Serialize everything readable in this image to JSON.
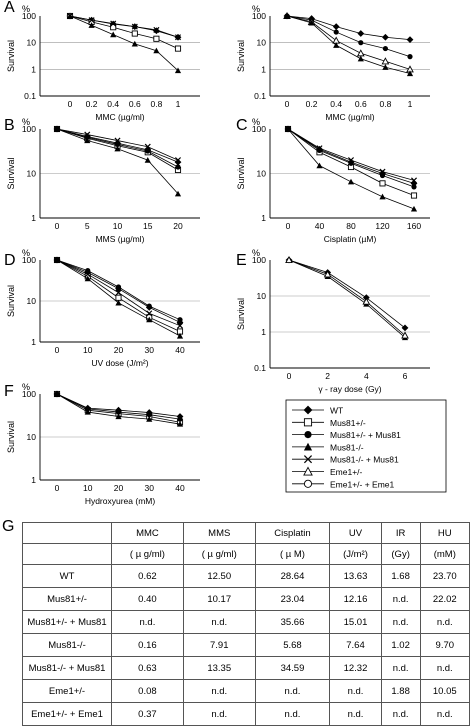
{
  "panels": [
    {
      "letter": "A",
      "unit": "%",
      "ylabel": "Survival",
      "xlabel": "MMC (µg/ml)",
      "x_ticks": [
        "0",
        "0.2",
        "0.4",
        "0.6",
        "0.8",
        "1"
      ],
      "y_ticks": [
        "100",
        "10",
        "1",
        "0.1"
      ],
      "chart_data": {
        "type": "line",
        "x": [
          0,
          0.2,
          0.4,
          0.6,
          0.8,
          1
        ],
        "ylim": [
          0.1,
          100
        ],
        "yscale": "log",
        "series": [
          {
            "marker": "diamond",
            "values": [
              100,
              70,
              50,
              40,
              28,
              16
            ]
          },
          {
            "marker": "square",
            "values": [
              100,
              60,
              38,
              22,
              14,
              6
            ]
          },
          {
            "marker": "cross",
            "values": [
              100,
              70,
              52,
              40,
              30,
              16
            ]
          },
          {
            "marker": "triangle",
            "values": [
              100,
              45,
              20,
              9,
              5,
              0.9
            ]
          }
        ]
      }
    },
    {
      "letter": "",
      "unit": "%",
      "ylabel": "Survival",
      "xlabel": "MMC (µg/ml)",
      "x_ticks": [
        "0",
        "0.2",
        "0.4",
        "0.6",
        "0.8",
        "1"
      ],
      "y_ticks": [
        "100",
        "10",
        "1",
        "0.1"
      ],
      "chart_data": {
        "type": "line",
        "x": [
          0,
          0.2,
          0.4,
          0.6,
          0.8,
          1
        ],
        "ylim": [
          0.1,
          100
        ],
        "yscale": "log",
        "series": [
          {
            "marker": "diamond",
            "values": [
              100,
              80,
              40,
              22,
              16,
              13
            ]
          },
          {
            "marker": "circle",
            "values": [
              100,
              70,
              25,
              10,
              6,
              3
            ]
          },
          {
            "marker": "triangle-open",
            "values": [
              100,
              60,
              12,
              4,
              2,
              1
            ]
          },
          {
            "marker": "triangle",
            "values": [
              100,
              55,
              8,
              2.5,
              1.2,
              0.7
            ]
          }
        ]
      }
    },
    {
      "letter": "B",
      "unit": "%",
      "ylabel": "Survival",
      "xlabel": "MMS (µg/ml)",
      "x_ticks": [
        "0",
        "5",
        "10",
        "15",
        "20"
      ],
      "y_ticks": [
        "100",
        "10",
        "1"
      ],
      "chart_data": {
        "type": "line",
        "x": [
          0,
          5,
          10,
          15,
          20
        ],
        "ylim": [
          1,
          100
        ],
        "yscale": "log",
        "series": [
          {
            "marker": "diamond",
            "values": [
              100,
              68,
              48,
              34,
              18
            ]
          },
          {
            "marker": "square",
            "values": [
              100,
              62,
              42,
              30,
              12
            ]
          },
          {
            "marker": "cross",
            "values": [
              100,
              75,
              55,
              40,
              20
            ]
          },
          {
            "marker": "circle",
            "values": [
              100,
              65,
              45,
              32,
              14
            ]
          },
          {
            "marker": "triangle",
            "values": [
              100,
              55,
              36,
              20,
              3.5
            ]
          }
        ]
      }
    },
    {
      "letter": "C",
      "unit": "%",
      "ylabel": "Survival",
      "xlabel": "Cisplatin (µM)",
      "x_ticks": [
        "0",
        "40",
        "80",
        "120",
        "160"
      ],
      "y_ticks": [
        "100",
        "10",
        "1"
      ],
      "chart_data": {
        "type": "line",
        "x": [
          0,
          40,
          80,
          120,
          160
        ],
        "ylim": [
          1,
          100
        ],
        "yscale": "log",
        "series": [
          {
            "marker": "diamond",
            "values": [
              100,
              35,
              18,
              10,
              6
            ]
          },
          {
            "marker": "square",
            "values": [
              100,
              30,
              14,
              6,
              3.2
            ]
          },
          {
            "marker": "circle",
            "values": [
              100,
              33,
              17,
              9,
              5
            ]
          },
          {
            "marker": "cross",
            "values": [
              100,
              37,
              20,
              11,
              7
            ]
          },
          {
            "marker": "triangle",
            "values": [
              100,
              15,
              6.5,
              3,
              1.6
            ]
          }
        ]
      }
    },
    {
      "letter": "D",
      "unit": "%",
      "ylabel": "Survival",
      "xlabel": "UV dose (J/m²)",
      "x_ticks": [
        "0",
        "10",
        "20",
        "30",
        "40"
      ],
      "y_ticks": [
        "100",
        "10",
        "1"
      ],
      "chart_data": {
        "type": "line",
        "x": [
          0,
          10,
          20,
          30,
          40
        ],
        "ylim": [
          1,
          100
        ],
        "yscale": "log",
        "series": [
          {
            "marker": "diamond",
            "values": [
              100,
              50,
              20,
              7,
              3
            ]
          },
          {
            "marker": "square",
            "values": [
              100,
              40,
              12,
              4,
              1.8
            ]
          },
          {
            "marker": "circle",
            "values": [
              100,
              55,
              22,
              7.5,
              3.5
            ]
          },
          {
            "marker": "cross",
            "values": [
              100,
              45,
              16,
              5,
              2.5
            ]
          },
          {
            "marker": "triangle",
            "values": [
              100,
              35,
              9,
              3.5,
              1.4
            ]
          }
        ]
      }
    },
    {
      "letter": "E",
      "unit": "%",
      "ylabel": "Survival",
      "xlabel": "γ - ray dose (Gy)",
      "x_ticks": [
        "0",
        "2",
        "4",
        "6"
      ],
      "y_ticks": [
        "100",
        "10",
        "1",
        "0.1"
      ],
      "chart_data": {
        "type": "line",
        "x": [
          0,
          2,
          4,
          6
        ],
        "ylim": [
          0.1,
          100
        ],
        "yscale": "log",
        "series": [
          {
            "marker": "diamond",
            "values": [
              100,
              45,
              9,
              1.3
            ]
          },
          {
            "marker": "triangle",
            "values": [
              100,
              35,
              6,
              0.7
            ]
          },
          {
            "marker": "triangle-open",
            "values": [
              100,
              40,
              7,
              0.8
            ]
          }
        ]
      }
    },
    {
      "letter": "F",
      "unit": "%",
      "ylabel": "Survival",
      "xlabel": "Hydroxyurea (mM)",
      "x_ticks": [
        "0",
        "10",
        "20",
        "30",
        "40"
      ],
      "y_ticks": [
        "100",
        "10",
        "1"
      ],
      "chart_data": {
        "type": "line",
        "x": [
          0,
          10,
          20,
          30,
          40
        ],
        "ylim": [
          1,
          100
        ],
        "yscale": "log",
        "series": [
          {
            "marker": "diamond",
            "values": [
              100,
              47,
              42,
              37,
              30
            ]
          },
          {
            "marker": "square",
            "values": [
              100,
              42,
              35,
              30,
              22
            ]
          },
          {
            "marker": "circle",
            "values": [
              100,
              45,
              38,
              33,
              26
            ]
          },
          {
            "marker": "triangle",
            "values": [
              100,
              38,
              30,
              26,
              20
            ]
          }
        ]
      }
    }
  ],
  "legend": [
    {
      "marker": "diamond",
      "label": "WT"
    },
    {
      "marker": "square",
      "label": "Mus81+/-"
    },
    {
      "marker": "circle",
      "label": "Mus81+/- + Mus81"
    },
    {
      "marker": "triangle",
      "label": "Mus81-/-"
    },
    {
      "marker": "cross",
      "label": "Mus81-/- + Mus81"
    },
    {
      "marker": "triangle-open",
      "label": "Eme1+/-"
    },
    {
      "marker": "circle-open",
      "label": "Eme1+/- + Eme1"
    }
  ],
  "table": {
    "letter": "G",
    "columns": [
      "MMC",
      "MMS",
      "Cisplatin",
      "UV",
      "IR",
      "HU"
    ],
    "units": [
      "( µ g/ml)",
      "( µ g/ml)",
      "( µ M)",
      "(J/m²)",
      "(Gy)",
      "(mM)"
    ],
    "rows": [
      {
        "label": "WT",
        "values": [
          "0.62",
          "12.50",
          "28.64",
          "13.63",
          "1.68",
          "23.70"
        ]
      },
      {
        "label": "Mus81+/-",
        "values": [
          "0.40",
          "10.17",
          "23.04",
          "12.16",
          "n.d.",
          "22.02"
        ]
      },
      {
        "label": "Mus81+/- + Mus81",
        "values": [
          "n.d.",
          "n.d.",
          "35.66",
          "15.01",
          "n.d.",
          "n.d."
        ]
      },
      {
        "label": "Mus81-/-",
        "values": [
          "0.16",
          "7.91",
          "5.68",
          "7.64",
          "1.02",
          "9.70"
        ]
      },
      {
        "label": "Mus81-/- + Mus81",
        "values": [
          "0.63",
          "13.35",
          "34.59",
          "12.32",
          "n.d.",
          "n.d."
        ]
      },
      {
        "label": "Eme1+/-",
        "values": [
          "0.08",
          "n.d.",
          "n.d.",
          "n.d.",
          "1.88",
          "10.05"
        ]
      },
      {
        "label": "Eme1+/- + Eme1",
        "values": [
          "0.37",
          "n.d.",
          "n.d.",
          "n.d.",
          "n.d.",
          "n.d."
        ]
      }
    ]
  }
}
